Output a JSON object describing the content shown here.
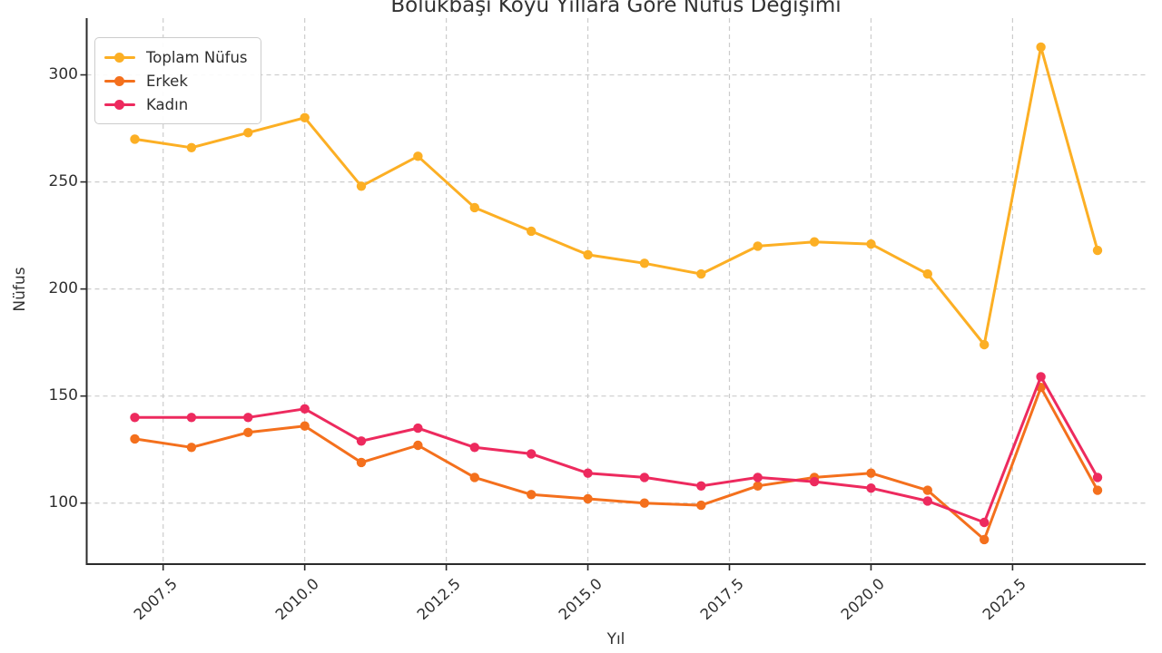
{
  "title": "Bölükbaşı Köyü Yıllara Göre Nüfus Değişimi",
  "xlabel": "Yıl",
  "ylabel": "Nüfus",
  "legend": {
    "items": [
      {
        "label": "Toplam Nüfus",
        "color": "#FCAF24"
      },
      {
        "label": "Erkek",
        "color": "#F4701D"
      },
      {
        "label": "Kadın",
        "color": "#ED2A5E"
      }
    ]
  },
  "axes": {
    "x_tick_labels": [
      "2007.5",
      "2010.0",
      "2012.5",
      "2015.0",
      "2017.5",
      "2020.0",
      "2022.5"
    ],
    "x_tick_values": [
      2007.5,
      2010.0,
      2012.5,
      2015.0,
      2017.5,
      2020.0,
      2022.5
    ],
    "y_tick_values": [
      100,
      150,
      200,
      250,
      300
    ]
  },
  "colors": {
    "grid": "#cccccc",
    "spine": "#2b2b2b",
    "text": "#323232"
  },
  "chart_data": {
    "type": "line",
    "title": "Bölükbaşı Köyü Yıllara Göre Nüfus Değişimi",
    "xlabel": "Yıl",
    "ylabel": "Nüfus",
    "x": [
      2007,
      2008,
      2009,
      2010,
      2011,
      2012,
      2013,
      2014,
      2015,
      2016,
      2017,
      2018,
      2019,
      2020,
      2021,
      2022,
      2023,
      2024
    ],
    "series": [
      {
        "name": "Toplam Nüfus",
        "color": "#FCAF24",
        "values": [
          270,
          266,
          273,
          280,
          248,
          262,
          238,
          227,
          216,
          212,
          207,
          220,
          222,
          221,
          207,
          174,
          313,
          218
        ]
      },
      {
        "name": "Erkek",
        "color": "#F4701D",
        "values": [
          130,
          126,
          133,
          136,
          119,
          127,
          112,
          104,
          102,
          100,
          99,
          108,
          112,
          114,
          106,
          83,
          154,
          106
        ]
      },
      {
        "name": "Kadın",
        "color": "#ED2A5E",
        "values": [
          140,
          140,
          140,
          144,
          129,
          135,
          126,
          123,
          114,
          112,
          108,
          112,
          110,
          107,
          101,
          91,
          159,
          112
        ]
      }
    ],
    "xlim": [
      2006.15,
      2024.85
    ],
    "ylim": [
      71.5,
      326.5
    ],
    "grid": true,
    "grid_style": "dashed",
    "legend_position": "upper left",
    "marker": "o"
  }
}
